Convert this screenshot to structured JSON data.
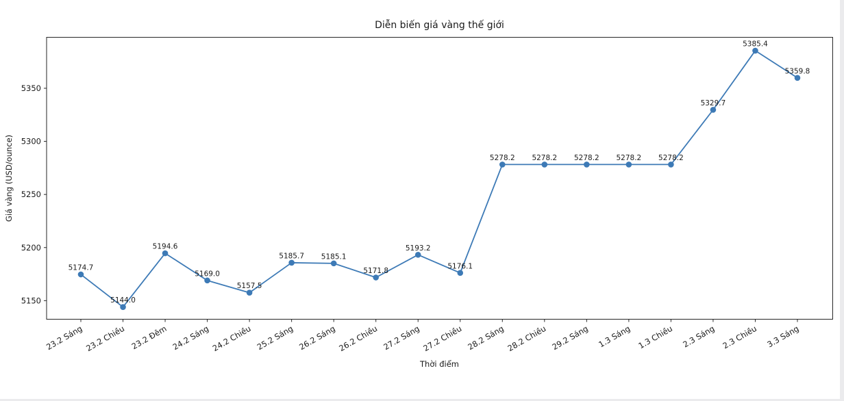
{
  "chart_data": {
    "type": "line",
    "title": "Diễn biến giá vàng thế giới",
    "xlabel": "Thời điểm",
    "ylabel": "Giá vàng (USD/ounce)",
    "categories": [
      "23.2 Sáng",
      "23.2 Chiều",
      "23.2 Đêm",
      "24.2 Sáng",
      "24.2 Chiều",
      "25.2 Sáng",
      "26.2 Sáng",
      "26.2 Chiều",
      "27.2 Sáng",
      "27.2 Chiều",
      "28.2 Sáng",
      "28.2 Chiều",
      "29.2 Sáng",
      "1.3 Sáng",
      "1.3 Chiều",
      "2.3 Sáng",
      "2.3 Chiều",
      "3.3 Sáng"
    ],
    "values": [
      5174.7,
      5144.0,
      5194.6,
      5169.0,
      5157.5,
      5185.7,
      5185.1,
      5171.8,
      5193.2,
      5176.1,
      5278.2,
      5278.2,
      5278.2,
      5278.2,
      5278.2,
      5329.7,
      5385.4,
      5359.8
    ],
    "point_labels": [
      "5174.7",
      "5144.0",
      "5194.6",
      "5169.0",
      "5157.5",
      "5185.7",
      "5185.1",
      "5171.8",
      "5193.2",
      "5176.1",
      "5278.2",
      "5278.2",
      "5278.2",
      "5278.2",
      "5278.2",
      "5329.7",
      "5385.4",
      "5359.8"
    ],
    "yticks": [
      5150,
      5200,
      5250,
      5300,
      5350
    ],
    "ylim": [
      5132.5,
      5398.0
    ],
    "x_tick_rotation": 30,
    "grid": false,
    "legend": "none",
    "line_color": "#3d7ab6",
    "marker_color": "#3d7ab6",
    "axis_color": "#262626",
    "text_color": "#1a1a1a"
  }
}
